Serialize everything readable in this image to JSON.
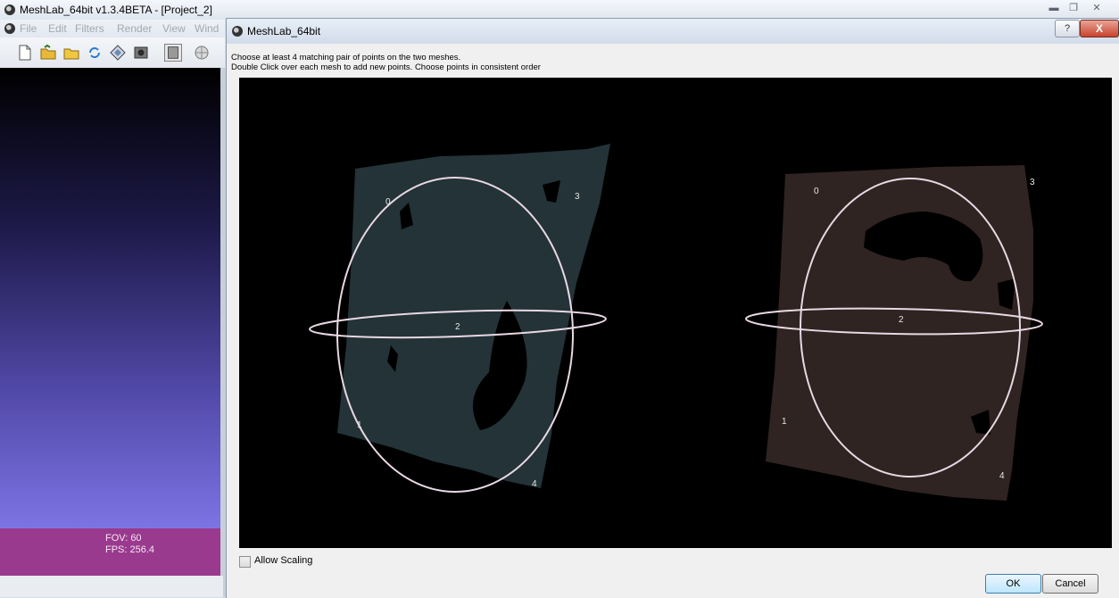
{
  "main_window": {
    "title": "MeshLab_64bit v1.3.4BETA - [Project_2]",
    "menu": [
      "File",
      "Edit",
      "Filters",
      "Render",
      "View",
      "Wind"
    ],
    "toolbar_icons": [
      "new-file-icon",
      "open-folder-icon",
      "open-project-icon",
      "reload-icon",
      "snapshot-icon",
      "camera-icon",
      "layers-icon",
      "mesh-icon"
    ],
    "info": {
      "fov": "FOV: 60",
      "fps": "FPS:  256.4"
    },
    "window_controls": [
      "minimize-icon",
      "restore-icon",
      "close-icon"
    ]
  },
  "dialog": {
    "title": "MeshLab_64bit",
    "help_label": "?",
    "close_label": "X",
    "instruction_1": "Choose at least 4 matching pair of points on the two meshes.",
    "instruction_2": "Double Click over each mesh to add new points. Choose points in consistent order",
    "allow_scaling_label": "Allow Scaling",
    "allow_scaling_checked": false,
    "ok_label": "OK",
    "cancel_label": "Cancel",
    "left_mesh_points": [
      "0",
      "1",
      "2",
      "3",
      "4"
    ],
    "right_mesh_points": [
      "0",
      "1",
      "2",
      "3",
      "4"
    ]
  },
  "colors": {
    "viewport_top": "#000000",
    "viewport_bottom": "#7d74e4",
    "info_panel": "#9a3a8e",
    "left_mesh": "#233338",
    "right_mesh": "#2f2421",
    "trackball": "#e9d8e4"
  }
}
